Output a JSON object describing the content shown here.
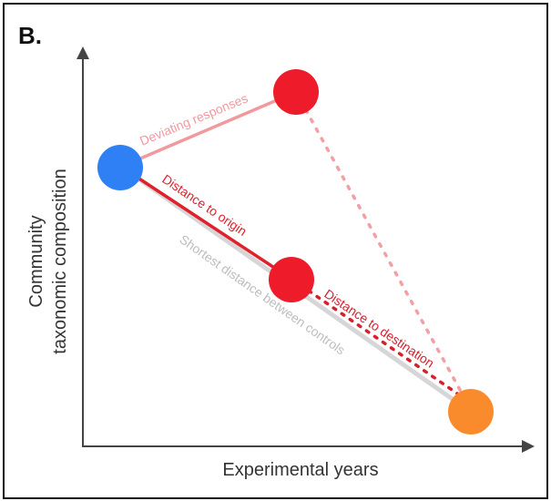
{
  "panel_label": "B.",
  "axes": {
    "x_label": "Experimental years",
    "y_label_line1": "Community",
    "y_label_line2": "taxonomic composition"
  },
  "annotations": {
    "deviating": "Deviating responses",
    "to_origin": "Distance to origin",
    "to_destination": "Distance to destination",
    "shortest": "Shortest distance between controls"
  },
  "colors": {
    "origin_node": "#2f7ff5",
    "deviating_node": "#ee1c2a",
    "midpoint_node": "#ee1c2a",
    "destination_node": "#f98b2c",
    "deviating_line": "#f2999e",
    "origin_line": "#e0212c",
    "shortest_line": "#d6d6d6",
    "dotted_red": "#d81f2a",
    "dotted_pink": "#f2a0a4",
    "axis": "#444444"
  }
}
